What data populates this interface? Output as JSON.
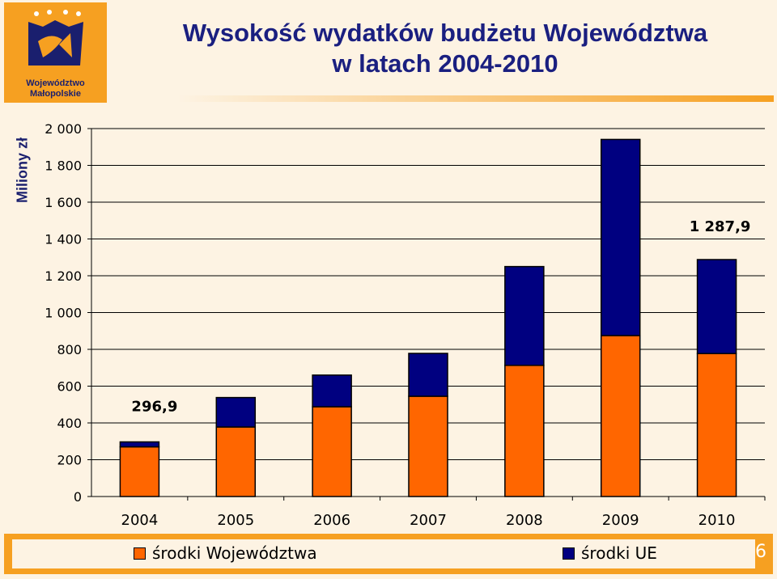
{
  "logo": {
    "line1": "Województwo",
    "line2": "Małopolskie"
  },
  "title": {
    "line1": "Wysokość wydatków budżetu Województwa",
    "line2": "w latach 2004-2010"
  },
  "chart_data": {
    "type": "bar",
    "stacked": true,
    "ylabel": "Miliony zł",
    "ylim": [
      0,
      2000
    ],
    "yticks": [
      "0",
      "200",
      "400",
      "600",
      "800",
      "1 000",
      "1 200",
      "1 400",
      "1 600",
      "1 800",
      "2 000"
    ],
    "ytick_values": [
      0,
      200,
      400,
      600,
      800,
      1000,
      1200,
      1400,
      1600,
      1800,
      2000
    ],
    "categories": [
      "2004",
      "2005",
      "2006",
      "2007",
      "2008",
      "2009",
      "2010"
    ],
    "series": [
      {
        "name": "środki Województwa",
        "color": "#ff6600",
        "values": [
          270,
          378,
          488,
          545,
          713,
          875,
          777
        ]
      },
      {
        "name": "środki UE",
        "color": "#000080",
        "values": [
          26.9,
          160,
          172,
          233,
          537,
          1066,
          510.9
        ]
      }
    ],
    "annotations": [
      {
        "category": "2004",
        "text": "296,9"
      },
      {
        "category": "2010",
        "text": "1 287,9"
      }
    ],
    "grid": true,
    "legend_position": "bottom"
  },
  "footer": {
    "page_number": "6"
  }
}
